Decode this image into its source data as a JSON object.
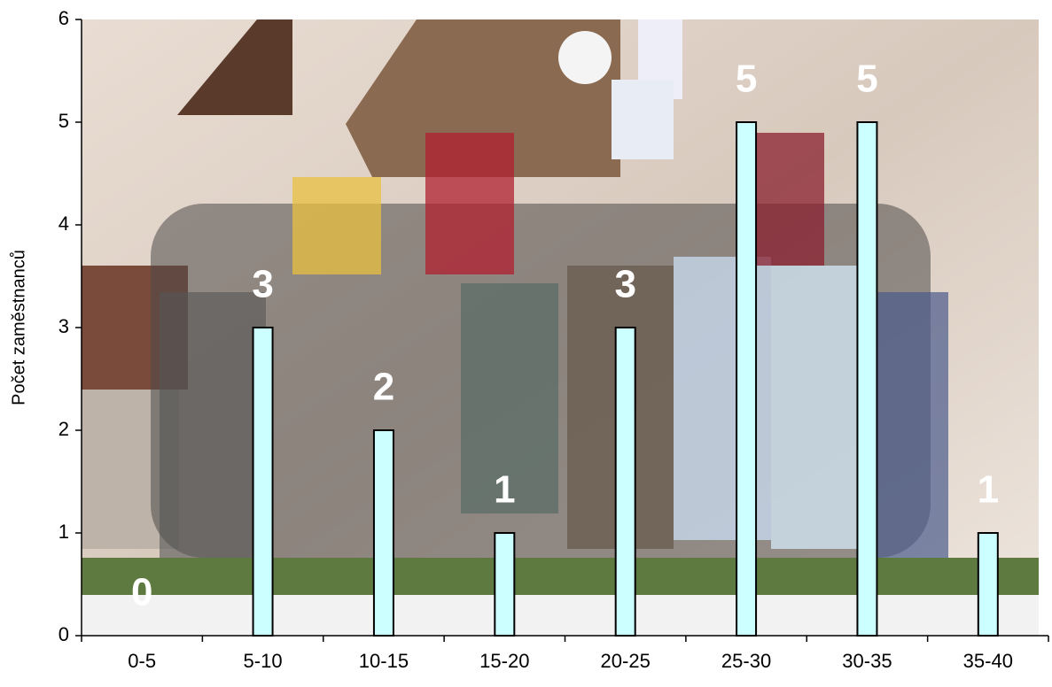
{
  "chart_data": {
    "type": "bar",
    "y_axis_label": "Počet zaměstnanců",
    "categories": [
      "0-5",
      "5-10",
      "10-15",
      "15-20",
      "20-25",
      "25-30",
      "30-35",
      "35-40"
    ],
    "values": [
      0,
      3,
      2,
      1,
      3,
      5,
      5,
      1
    ],
    "color": "#ccffff",
    "ylim": [
      0,
      6
    ],
    "yticks": [
      0,
      1,
      2,
      3,
      4,
      5,
      6
    ],
    "grid": false,
    "data_labels": true
  }
}
